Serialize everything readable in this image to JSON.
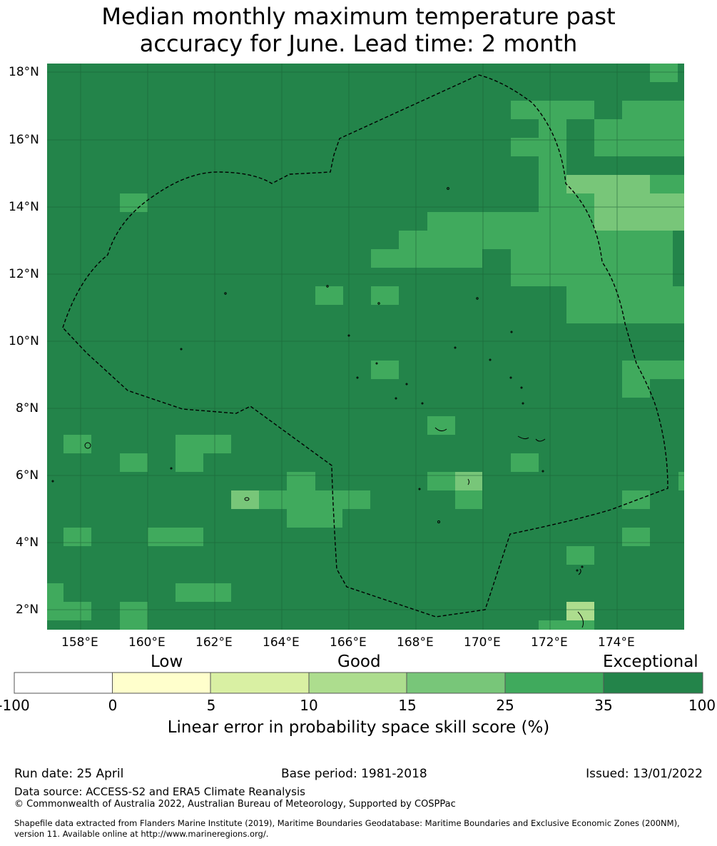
{
  "title_line1": "Median monthly maximum temperature past",
  "title_line2": "accuracy for June. Lead time: 2 month",
  "map": {
    "lat_labels": [
      "18°N",
      "16°N",
      "14°N",
      "12°N",
      "10°N",
      "8°N",
      "6°N",
      "4°N",
      "2°N"
    ],
    "lon_labels": [
      "158°E",
      "160°E",
      "162°E",
      "164°E",
      "166°E",
      "168°E",
      "170°E",
      "172°E",
      "174°E"
    ],
    "colors": {
      "class_35_100": "#23844a",
      "class_25_35": "#40aa5d",
      "class_15_25": "#78c679",
      "class_10_15": "#addd8e",
      "class_5_10": "#d9f0a3",
      "class_0_5": "#ffffcc",
      "class_neg": "#ffffff"
    }
  },
  "colorbar": {
    "categories": {
      "low": "Low",
      "good": "Good",
      "exceptional": "Exceptional"
    },
    "ticks": [
      "-100",
      "0",
      "5",
      "10",
      "15",
      "25",
      "35",
      "100"
    ],
    "colors": [
      "#ffffff",
      "#ffffcc",
      "#d9f0a3",
      "#addd8e",
      "#78c679",
      "#40aa5d",
      "#23844a"
    ],
    "label": "Linear error in probability space skill score (%)"
  },
  "footer": {
    "run_date": "Run date: 25 April",
    "base_period": "Base period: 1981-2018",
    "issued": "Issued: 13/01/2022",
    "data_source": "Data source: ACCESS-S2 and ERA5 Climate Reanalysis",
    "copyright": "© Commonwealth of Australia 2022, Australian Bureau of Meteorology, Supported by COSPPac",
    "shapefile_line1": "Shapefile data extracted from Flanders Marine Institute (2019), Maritime Boundaries Geodatabase: Maritime Boundaries and Exclusive Economic Zones (200NM),",
    "shapefile_line2": "version 11. Available online at http://www.marineregions.org/."
  }
}
